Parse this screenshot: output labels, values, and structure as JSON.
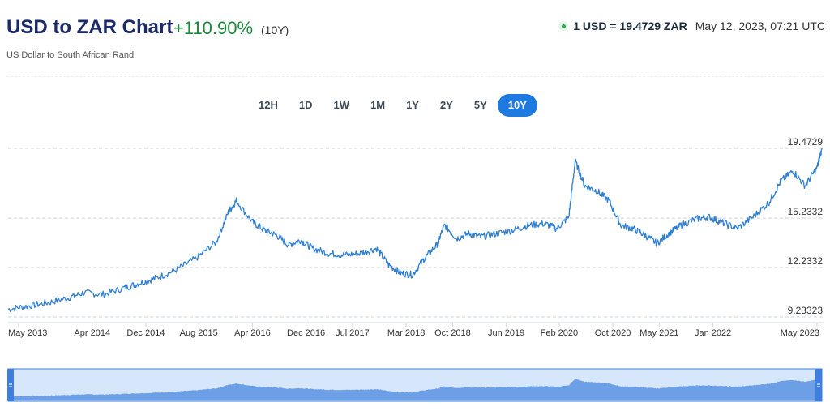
{
  "header": {
    "title": "USD to ZAR Chart",
    "change": "+110.90%",
    "period": "(10Y)",
    "subtitle": "US Dollar to South African Rand",
    "rate": "1 USD = 19.4729 ZAR",
    "timestamp": "May 12, 2023, 07:21 UTC"
  },
  "tabs": [
    {
      "label": "12H",
      "active": false
    },
    {
      "label": "1D",
      "active": false
    },
    {
      "label": "1W",
      "active": false
    },
    {
      "label": "1M",
      "active": false
    },
    {
      "label": "1Y",
      "active": false
    },
    {
      "label": "2Y",
      "active": false
    },
    {
      "label": "5Y",
      "active": false
    },
    {
      "label": "10Y",
      "active": true
    }
  ],
  "colors": {
    "line": "#2f7fd1",
    "active_tab": "#1f7ae0",
    "positive": "#1a8a3a",
    "navigator_fill": "#6d9fe6",
    "navigator_bg": "#d6e6fb",
    "navigator_handle": "#3d7fe0"
  },
  "chart_data": {
    "type": "line",
    "title": "USD to ZAR Chart",
    "ylim": [
      9.23323,
      19.4729
    ],
    "yticks": [
      "19.4729",
      "15.2332",
      "12.2332",
      "9.23323"
    ],
    "ytick_values": [
      19.4729,
      15.2332,
      12.2332,
      9.23323
    ],
    "xticks": [
      "May 2013",
      "Apr 2014",
      "Dec 2014",
      "Aug 2015",
      "Apr 2016",
      "Dec 2016",
      "Jul 2017",
      "Mar 2018",
      "Oct 2018",
      "Jun 2019",
      "Feb 2020",
      "Oct 2020",
      "May 2021",
      "Jan 2022",
      "May 2023"
    ],
    "xtick_values": [
      2013.33,
      2014.25,
      2014.92,
      2015.58,
      2016.25,
      2016.92,
      2017.5,
      2018.17,
      2018.75,
      2019.42,
      2020.08,
      2020.75,
      2021.33,
      2022.0,
      2023.33
    ],
    "grid": true,
    "series": [
      {
        "x": [
          2013.2,
          2013.45,
          2013.7,
          2013.95,
          2014.15,
          2014.4,
          2014.65,
          2014.85,
          2015.05,
          2015.3,
          2015.55,
          2015.8,
          2015.95,
          2016.05,
          2016.25,
          2016.4,
          2016.55,
          2016.7,
          2016.85,
          2017.0,
          2017.2,
          2017.4,
          2017.6,
          2017.8,
          2017.95,
          2018.1,
          2018.25,
          2018.4,
          2018.55,
          2018.65,
          2018.8,
          2018.95,
          2019.1,
          2019.3,
          2019.5,
          2019.7,
          2019.9,
          2020.05,
          2020.2,
          2020.28,
          2020.4,
          2020.55,
          2020.7,
          2020.85,
          2021.0,
          2021.15,
          2021.3,
          2021.45,
          2021.6,
          2021.8,
          2021.95,
          2022.1,
          2022.3,
          2022.5,
          2022.7,
          2022.85,
          2023.0,
          2023.15,
          2023.3,
          2023.36
        ],
        "values": [
          9.7,
          9.9,
          10.1,
          10.4,
          10.7,
          10.6,
          11.0,
          11.3,
          11.6,
          12.1,
          12.8,
          13.8,
          15.6,
          16.3,
          15.0,
          14.5,
          14.2,
          13.6,
          13.9,
          13.4,
          13.1,
          13.0,
          13.1,
          13.4,
          12.4,
          11.9,
          11.8,
          12.8,
          13.6,
          14.8,
          14.0,
          14.3,
          14.1,
          14.3,
          14.5,
          14.8,
          14.9,
          14.6,
          15.3,
          18.7,
          17.2,
          16.9,
          16.3,
          14.8,
          14.6,
          14.2,
          13.7,
          14.3,
          14.8,
          15.2,
          15.3,
          15.0,
          14.6,
          15.3,
          16.2,
          17.5,
          18.1,
          17.2,
          18.3,
          19.47
        ]
      }
    ]
  }
}
